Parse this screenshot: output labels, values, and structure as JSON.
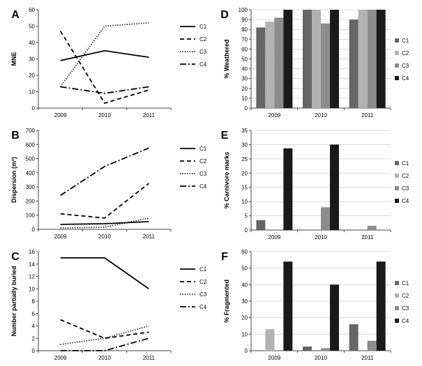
{
  "chart_data": [
    {
      "panel": "A",
      "type": "line",
      "ylabel": "MNE",
      "x": [
        "2009",
        "2010",
        "2011"
      ],
      "ylim": [
        0,
        60
      ],
      "yticks": [
        0,
        10,
        20,
        30,
        40,
        50,
        60
      ],
      "series": [
        {
          "name": "C1",
          "values": [
            29,
            35,
            31
          ],
          "style": "solid"
        },
        {
          "name": "C2",
          "values": [
            47,
            3,
            11
          ],
          "style": "dashed"
        },
        {
          "name": "C3",
          "values": [
            13,
            50,
            52
          ],
          "style": "dotted"
        },
        {
          "name": "C4",
          "values": [
            13,
            9,
            13
          ],
          "style": "dashdot"
        }
      ]
    },
    {
      "panel": "B",
      "type": "line",
      "ylabel": "Dispersion (m²)",
      "x": [
        "2009",
        "2010",
        "2011"
      ],
      "ylim": [
        0,
        700
      ],
      "yticks": [
        0,
        100,
        200,
        300,
        400,
        500,
        600,
        700
      ],
      "series": [
        {
          "name": "C1",
          "values": [
            35,
            40,
            55
          ],
          "style": "solid"
        },
        {
          "name": "C2",
          "values": [
            110,
            80,
            325
          ],
          "style": "dashed"
        },
        {
          "name": "C3",
          "values": [
            10,
            15,
            80
          ],
          "style": "dotted"
        },
        {
          "name": "C4",
          "values": [
            240,
            445,
            575
          ],
          "style": "dashdot"
        }
      ]
    },
    {
      "panel": "C",
      "type": "line",
      "ylabel": "Number partially buried",
      "x": [
        "2009",
        "2010",
        "2011"
      ],
      "ylim": [
        0,
        16
      ],
      "yticks": [
        0,
        2,
        4,
        6,
        8,
        10,
        12,
        14,
        16
      ],
      "series": [
        {
          "name": "C1",
          "values": [
            15,
            15,
            10
          ],
          "style": "solid"
        },
        {
          "name": "C2",
          "values": [
            5,
            2,
            3
          ],
          "style": "dashed"
        },
        {
          "name": "C3",
          "values": [
            1,
            2,
            4
          ],
          "style": "dotted"
        },
        {
          "name": "C4",
          "values": [
            0,
            0,
            2
          ],
          "style": "dashdot"
        }
      ]
    },
    {
      "panel": "D",
      "type": "bar",
      "ylabel": "% Weathered",
      "categories": [
        "2009",
        "2010",
        "2011"
      ],
      "ylim": [
        0,
        100
      ],
      "yticks": [
        0,
        10,
        20,
        30,
        40,
        50,
        60,
        70,
        80,
        90,
        100
      ],
      "series": [
        {
          "name": "C1",
          "values": [
            82,
            100,
            90
          ],
          "color": "#666666"
        },
        {
          "name": "C2",
          "values": [
            88,
            100,
            100
          ],
          "color": "#b2b2b2"
        },
        {
          "name": "C3",
          "values": [
            92,
            86,
            100
          ],
          "color": "#8c8c8c"
        },
        {
          "name": "C4",
          "values": [
            100,
            100,
            100
          ],
          "color": "#1a1a1a"
        }
      ]
    },
    {
      "panel": "E",
      "type": "bar",
      "ylabel": "% Carnivore marks",
      "categories": [
        "2009",
        "2010",
        "2011"
      ],
      "ylim": [
        0,
        35
      ],
      "yticks": [
        0,
        5,
        10,
        15,
        20,
        25,
        30,
        35
      ],
      "series": [
        {
          "name": "C1",
          "values": [
            3.5,
            0,
            0
          ],
          "color": "#666666"
        },
        {
          "name": "C2",
          "values": [
            0,
            0,
            0
          ],
          "color": "#b2b2b2"
        },
        {
          "name": "C3",
          "values": [
            0,
            8,
            1.5
          ],
          "color": "#8c8c8c"
        },
        {
          "name": "C4",
          "values": [
            28.7,
            30,
            0
          ],
          "color": "#1a1a1a"
        }
      ]
    },
    {
      "panel": "F",
      "type": "bar",
      "ylabel": "% Fragmented",
      "categories": [
        "2009",
        "2010",
        "2011"
      ],
      "ylim": [
        0,
        60
      ],
      "yticks": [
        0,
        10,
        20,
        30,
        40,
        50,
        60
      ],
      "series": [
        {
          "name": "C1",
          "values": [
            0,
            2.5,
            16
          ],
          "color": "#666666"
        },
        {
          "name": "C2",
          "values": [
            13,
            0,
            0
          ],
          "color": "#b2b2b2"
        },
        {
          "name": "C3",
          "values": [
            0,
            1.5,
            6
          ],
          "color": "#8c8c8c"
        },
        {
          "name": "C4",
          "values": [
            54,
            40,
            54
          ],
          "color": "#1a1a1a"
        }
      ]
    }
  ]
}
